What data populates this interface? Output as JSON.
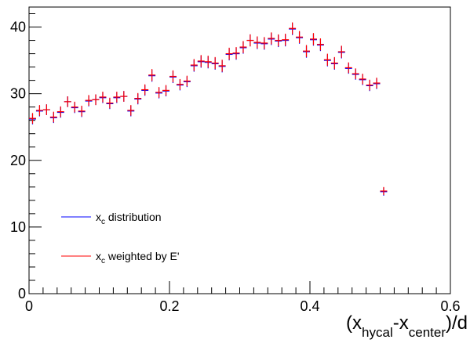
{
  "chart_data": {
    "type": "scatter",
    "title": "",
    "xlabel": {
      "base": "(x",
      "sub1": "hycal",
      "mid": "-x",
      "sub2": "center",
      "tail": ")/d"
    },
    "ylabel": "",
    "xlim": [
      0,
      0.6
    ],
    "ylim": [
      0,
      43
    ],
    "x_ticks": [
      0,
      0.2,
      0.4,
      0.6
    ],
    "x_tick_labels": [
      "0",
      "0.2",
      "0.4",
      "0.6"
    ],
    "y_ticks": [
      0,
      10,
      20,
      30,
      40
    ],
    "y_tick_labels": [
      "0",
      "10",
      "20",
      "30",
      "40"
    ],
    "grid": false,
    "legend_position": "lower-left",
    "bin_half_width": 0.005,
    "series": [
      {
        "name": {
          "base": "x",
          "sub": "c",
          "rest": " distribution"
        },
        "color": "#0000ff",
        "x": [
          0.005,
          0.015,
          0.025,
          0.035,
          0.045,
          0.055,
          0.065,
          0.075,
          0.085,
          0.095,
          0.105,
          0.115,
          0.125,
          0.135,
          0.145,
          0.155,
          0.165,
          0.175,
          0.185,
          0.195,
          0.205,
          0.215,
          0.225,
          0.235,
          0.245,
          0.255,
          0.265,
          0.275,
          0.285,
          0.295,
          0.305,
          0.315,
          0.325,
          0.335,
          0.345,
          0.355,
          0.365,
          0.375,
          0.385,
          0.395,
          0.405,
          0.415,
          0.425,
          0.435,
          0.445,
          0.455,
          0.465,
          0.475,
          0.485,
          0.495,
          0.505
        ],
        "y": [
          26.2,
          27.4,
          27.6,
          26.4,
          27.2,
          28.8,
          27.9,
          27.3,
          28.9,
          29.1,
          29.4,
          28.5,
          29.4,
          29.6,
          27.4,
          29.2,
          30.5,
          32.7,
          30.1,
          30.4,
          32.5,
          31.3,
          31.8,
          34.2,
          34.8,
          34.7,
          34.5,
          34.1,
          35.9,
          36.0,
          36.9,
          38.0,
          37.6,
          37.5,
          38.2,
          37.9,
          38.0,
          39.7,
          38.4,
          36.3,
          38.1,
          37.3,
          35.0,
          34.5,
          36.2,
          33.8,
          32.9,
          32.1,
          31.2,
          31.5,
          15.3
        ],
        "yerr": [
          0.8,
          0.8,
          0.8,
          0.8,
          0.8,
          0.8,
          0.8,
          0.8,
          0.8,
          0.8,
          0.8,
          0.8,
          0.8,
          0.8,
          0.8,
          0.8,
          0.8,
          0.9,
          0.8,
          0.8,
          0.9,
          0.8,
          0.8,
          0.9,
          0.9,
          0.9,
          0.9,
          0.9,
          0.9,
          0.9,
          0.9,
          0.9,
          0.9,
          0.9,
          0.9,
          0.9,
          0.9,
          0.9,
          0.9,
          0.9,
          0.9,
          0.9,
          0.9,
          0.9,
          0.9,
          0.8,
          0.8,
          0.8,
          0.8,
          0.8,
          0.6
        ]
      },
      {
        "name": {
          "base": "x",
          "sub": "c",
          "rest": " weighted by E'"
        },
        "color": "#ff0000",
        "x": [
          0.005,
          0.015,
          0.025,
          0.035,
          0.045,
          0.055,
          0.065,
          0.075,
          0.085,
          0.095,
          0.105,
          0.115,
          0.125,
          0.135,
          0.145,
          0.155,
          0.165,
          0.175,
          0.185,
          0.195,
          0.205,
          0.215,
          0.225,
          0.235,
          0.245,
          0.255,
          0.265,
          0.275,
          0.285,
          0.295,
          0.305,
          0.315,
          0.325,
          0.335,
          0.345,
          0.355,
          0.365,
          0.375,
          0.385,
          0.395,
          0.405,
          0.415,
          0.425,
          0.435,
          0.445,
          0.455,
          0.465,
          0.475,
          0.485,
          0.495,
          0.505
        ],
        "y": [
          26.3,
          27.5,
          27.6,
          26.5,
          27.3,
          28.8,
          28.0,
          27.4,
          29.0,
          29.1,
          29.5,
          28.6,
          29.5,
          29.6,
          27.5,
          29.3,
          30.6,
          32.8,
          30.2,
          30.5,
          32.6,
          31.4,
          31.9,
          34.3,
          34.9,
          34.8,
          34.6,
          34.2,
          36.0,
          36.1,
          37.0,
          38.0,
          37.7,
          37.6,
          38.3,
          38.0,
          38.1,
          39.8,
          38.5,
          36.4,
          38.2,
          37.4,
          35.1,
          34.6,
          36.3,
          33.9,
          33.0,
          32.2,
          31.3,
          31.6,
          15.4
        ],
        "yerr": [
          0.8,
          0.8,
          0.8,
          0.8,
          0.8,
          0.8,
          0.8,
          0.8,
          0.8,
          0.8,
          0.8,
          0.8,
          0.8,
          0.8,
          0.8,
          0.8,
          0.8,
          0.9,
          0.8,
          0.8,
          0.9,
          0.8,
          0.8,
          0.9,
          0.9,
          0.9,
          0.9,
          0.9,
          0.9,
          0.9,
          0.9,
          0.9,
          0.9,
          0.9,
          0.9,
          0.9,
          0.9,
          0.9,
          0.9,
          0.9,
          0.9,
          0.9,
          0.9,
          0.9,
          0.9,
          0.8,
          0.8,
          0.8,
          0.8,
          0.8,
          0.6
        ]
      }
    ]
  }
}
